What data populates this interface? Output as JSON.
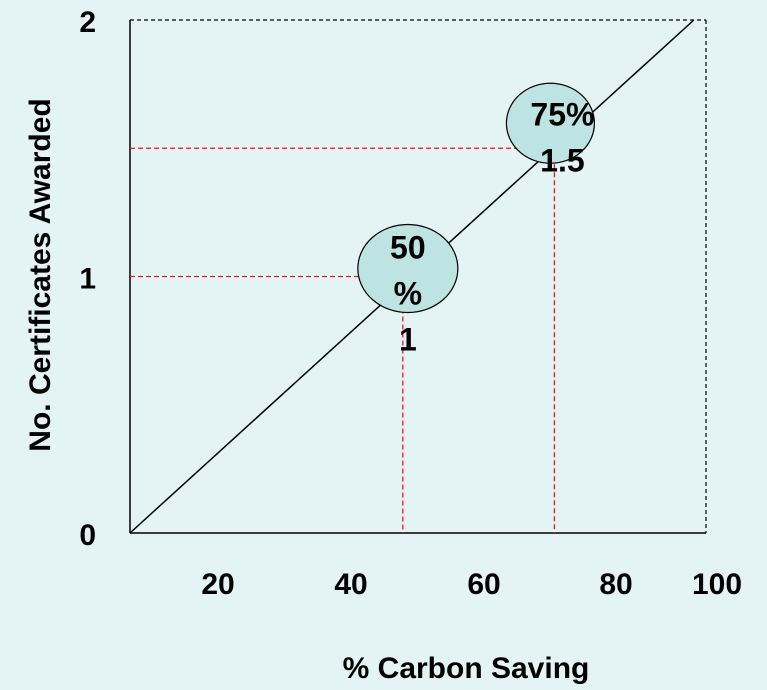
{
  "chart_data": {
    "type": "line",
    "xlabel": "% Carbon Saving",
    "ylabel": "No. Certificates Awarded",
    "x_ticks": [
      "20",
      "40",
      "60",
      "80",
      "100"
    ],
    "y_ticks": [
      "0",
      "1",
      "2"
    ],
    "xlim": [
      5,
      100
    ],
    "ylim": [
      0,
      2
    ],
    "grid": false,
    "series": [
      {
        "x": [
          5,
          98
        ],
        "y": [
          0,
          2
        ]
      }
    ],
    "annotations": [
      {
        "label_lines": [
          "50",
          "%",
          "1"
        ],
        "x": 50,
        "y": 1
      },
      {
        "label_lines": [
          "75%",
          "1.5"
        ],
        "x": 75,
        "y": 1.5
      }
    ],
    "colors": {
      "background": "#e4f3f4",
      "bubble_fill": "#bde3e3",
      "guide_line": "#e8172b",
      "line": "#000000"
    }
  }
}
